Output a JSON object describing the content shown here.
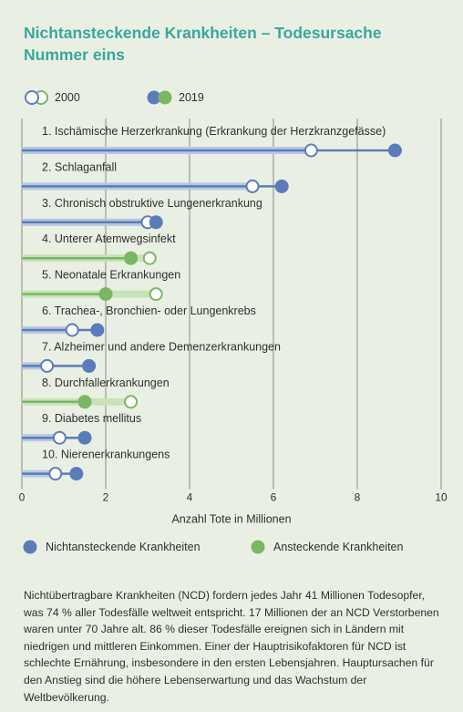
{
  "title": "Nichtansteckende Krankheiten – Todesursache Nummer eins",
  "legend_years": {
    "y2000": "2000",
    "y2019": "2019"
  },
  "legend_types": {
    "ncd": "Nichtansteckende Krankheiten",
    "infectious": "Ansteckende Krankheiten"
  },
  "colors": {
    "ncd": "#5b7cba",
    "ncd_light": "#b7c7e2",
    "infectious": "#79b761",
    "infectious_light": "#c9e2b9",
    "title": "#3aa69e",
    "background": "#e9f0e3"
  },
  "body_text": "Nichtübertragbare Krankheiten (NCD) fordern jedes Jahr 41 Millionen Todesopfer, was 74 % aller Todesfälle weltweit entspricht. 17 Millionen der an NCD Verstorbenen waren unter 70 Jahre alt. 86 % dieser Todesfälle ereignen sich in Ländern mit niedrigen und mittleren Einkommen. Einer der Hauptrisikofaktoren für NCD ist schlechte Ernährung, insbesondere in den ersten Lebensjahren. Hauptursachen für den Anstieg sind die höhere Lebenserwartung und das Wachstum der Weltbevölkerung.",
  "chart_data": {
    "type": "dumbbell",
    "xlabel": "Anzahl Tote in Millionen",
    "xlim": [
      0,
      10
    ],
    "xticks": [
      0,
      2,
      4,
      6,
      8,
      10
    ],
    "grid": true,
    "series": [
      {
        "name": "2000",
        "style": "hollow circle"
      },
      {
        "name": "2019",
        "style": "filled circle"
      }
    ],
    "categories": [
      {
        "label": "1. Ischämische Herzerkrankung (Erkrankung der Herzkranzgefässe)",
        "group": "ncd",
        "v2000": 6.9,
        "v2019": 8.9
      },
      {
        "label": "2. Schlaganfall",
        "group": "ncd",
        "v2000": 5.5,
        "v2019": 6.2
      },
      {
        "label": "3. Chronisch obstruktive Lungenerkrankung",
        "group": "ncd",
        "v2000": 3.0,
        "v2019": 3.2
      },
      {
        "label": "4. Unterer Atemwegsinfekt",
        "group": "infectious",
        "v2000": 3.05,
        "v2019": 2.6
      },
      {
        "label": "5. Neonatale Erkrankungen",
        "group": "infectious",
        "v2000": 3.2,
        "v2019": 2.0
      },
      {
        "label": "6. Trachea-, Bronchien- oder Lungenkrebs",
        "group": "ncd",
        "v2000": 1.2,
        "v2019": 1.8
      },
      {
        "label": "7. Alzheimer und andere Demenzerkrankungen",
        "group": "ncd",
        "v2000": 0.6,
        "v2019": 1.6
      },
      {
        "label": "8. Durchfallerkrankungen",
        "group": "infectious",
        "v2000": 2.6,
        "v2019": 1.5
      },
      {
        "label": "9. Diabetes mellitus",
        "group": "ncd",
        "v2000": 0.9,
        "v2019": 1.5
      },
      {
        "label": "10. Nierenerkrankungens",
        "group": "ncd",
        "v2000": 0.8,
        "v2019": 1.3
      }
    ]
  }
}
